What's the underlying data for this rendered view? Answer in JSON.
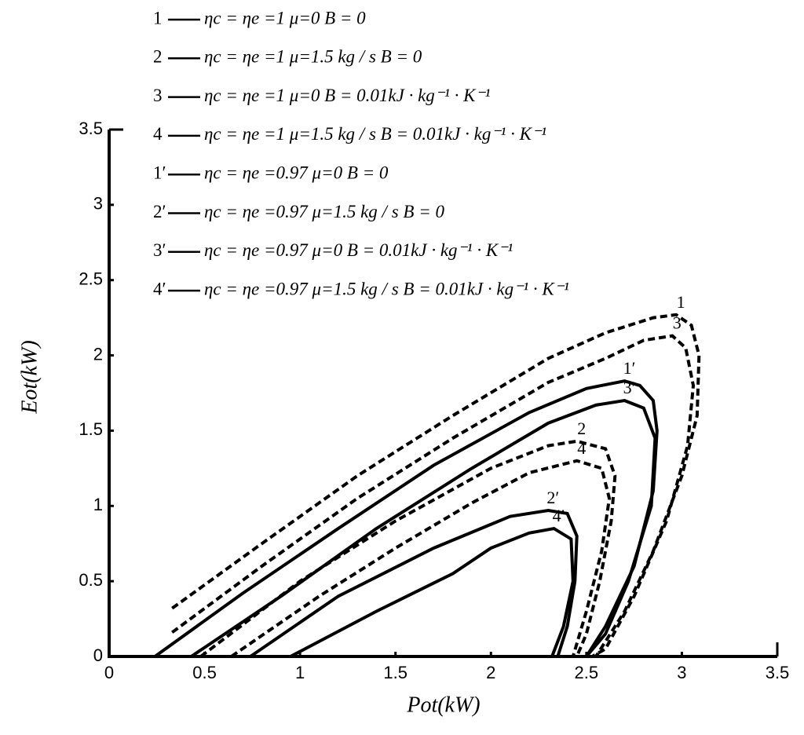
{
  "chart_data": {
    "type": "line",
    "xlabel": "Pot(kW)",
    "ylabel": "Eot(kW)",
    "xlim": [
      0,
      3.5
    ],
    "ylim": [
      0,
      3.5
    ],
    "xticks": [
      0,
      0.5,
      1,
      1.5,
      2,
      2.5,
      3,
      3.5
    ],
    "yticks": [
      0,
      0.5,
      1,
      1.5,
      2,
      2.5,
      3,
      3.5
    ],
    "series": [
      {
        "name": "1",
        "label": "ηc = ηe =1 μ=0 B = 0",
        "style": "dashed",
        "color": "#000000",
        "x": [
          0.33,
          0.8,
          1.3,
          1.8,
          2.3,
          2.6,
          2.85,
          2.97,
          3.05,
          3.09,
          3.08,
          3.0,
          2.85,
          2.7,
          2.55
        ],
        "values": [
          0.32,
          0.75,
          1.2,
          1.6,
          1.98,
          2.15,
          2.25,
          2.27,
          2.2,
          2.0,
          1.6,
          1.2,
          0.7,
          0.3,
          0
        ]
      },
      {
        "name": "2",
        "label": "ηc = ηe =1 μ=1.5 kg / s B = 0",
        "style": "dashed",
        "color": "#000000",
        "x": [
          0.48,
          1.0,
          1.5,
          2.0,
          2.3,
          2.45,
          2.6,
          2.65,
          2.63,
          2.57,
          2.5,
          2.45
        ],
        "values": [
          0,
          0.5,
          0.9,
          1.25,
          1.4,
          1.43,
          1.38,
          1.2,
          0.9,
          0.5,
          0.15,
          0
        ]
      },
      {
        "name": "3",
        "label": "ηc = ηe =1 μ=0 B = 0.01kJ · kg⁻¹ · K⁻¹",
        "style": "dashed",
        "color": "#000000",
        "x": [
          0.33,
          0.8,
          1.3,
          1.8,
          2.3,
          2.6,
          2.8,
          2.95,
          3.02,
          3.06,
          3.03,
          2.92,
          2.75,
          2.6,
          2.53
        ],
        "values": [
          0.16,
          0.6,
          1.05,
          1.45,
          1.82,
          1.98,
          2.1,
          2.13,
          2.05,
          1.8,
          1.4,
          0.9,
          0.4,
          0.05,
          0
        ]
      },
      {
        "name": "4",
        "label": "ηc = ηe =1 μ=1.5 kg / s B = 0.01kJ · kg⁻¹ · K⁻¹",
        "style": "dashed",
        "color": "#000000",
        "x": [
          0.64,
          1.1,
          1.5,
          1.9,
          2.2,
          2.45,
          2.58,
          2.62,
          2.58,
          2.5,
          2.43
        ],
        "values": [
          0,
          0.4,
          0.72,
          1.02,
          1.22,
          1.3,
          1.25,
          1.05,
          0.7,
          0.3,
          0
        ]
      },
      {
        "name": "1′",
        "label": "ηc = ηe =0.97 μ=0 B = 0",
        "style": "solid",
        "color": "#000000",
        "x": [
          0.24,
          0.7,
          1.2,
          1.7,
          2.2,
          2.5,
          2.7,
          2.78,
          2.85,
          2.87,
          2.85,
          2.75,
          2.6,
          2.5
        ],
        "values": [
          0,
          0.42,
          0.85,
          1.27,
          1.62,
          1.78,
          1.83,
          1.8,
          1.7,
          1.5,
          1.1,
          0.6,
          0.2,
          0
        ]
      },
      {
        "name": "2′",
        "label": "ηc = ηe =0.97 μ=1.5 kg / s B = 0",
        "style": "solid",
        "color": "#000000",
        "x": [
          0.74,
          1.2,
          1.7,
          2.1,
          2.3,
          2.4,
          2.45,
          2.44,
          2.4,
          2.35
        ],
        "values": [
          0,
          0.4,
          0.72,
          0.93,
          0.97,
          0.95,
          0.8,
          0.5,
          0.2,
          0
        ]
      },
      {
        "name": "3′",
        "label": "ηc = ηe =0.97 μ=0 B = 0.01kJ · kg⁻¹ · K⁻¹",
        "style": "solid",
        "color": "#000000",
        "x": [
          0.43,
          0.9,
          1.4,
          1.9,
          2.3,
          2.55,
          2.7,
          2.8,
          2.86,
          2.84,
          2.72,
          2.6,
          2.5
        ],
        "values": [
          0,
          0.4,
          0.85,
          1.25,
          1.55,
          1.67,
          1.7,
          1.65,
          1.45,
          1.0,
          0.5,
          0.15,
          0
        ]
      },
      {
        "name": "4′",
        "label": "ηc = ηe =0.97 μ=1.5 kg / s B = 0.01kJ · kg⁻¹ · K⁻¹",
        "style": "solid",
        "color": "#000000",
        "x": [
          0.95,
          1.4,
          1.8,
          2.0,
          2.2,
          2.33,
          2.42,
          2.43,
          2.38,
          2.32
        ],
        "values": [
          0,
          0.3,
          0.55,
          0.72,
          0.82,
          0.85,
          0.78,
          0.5,
          0.2,
          0
        ]
      }
    ]
  }
}
